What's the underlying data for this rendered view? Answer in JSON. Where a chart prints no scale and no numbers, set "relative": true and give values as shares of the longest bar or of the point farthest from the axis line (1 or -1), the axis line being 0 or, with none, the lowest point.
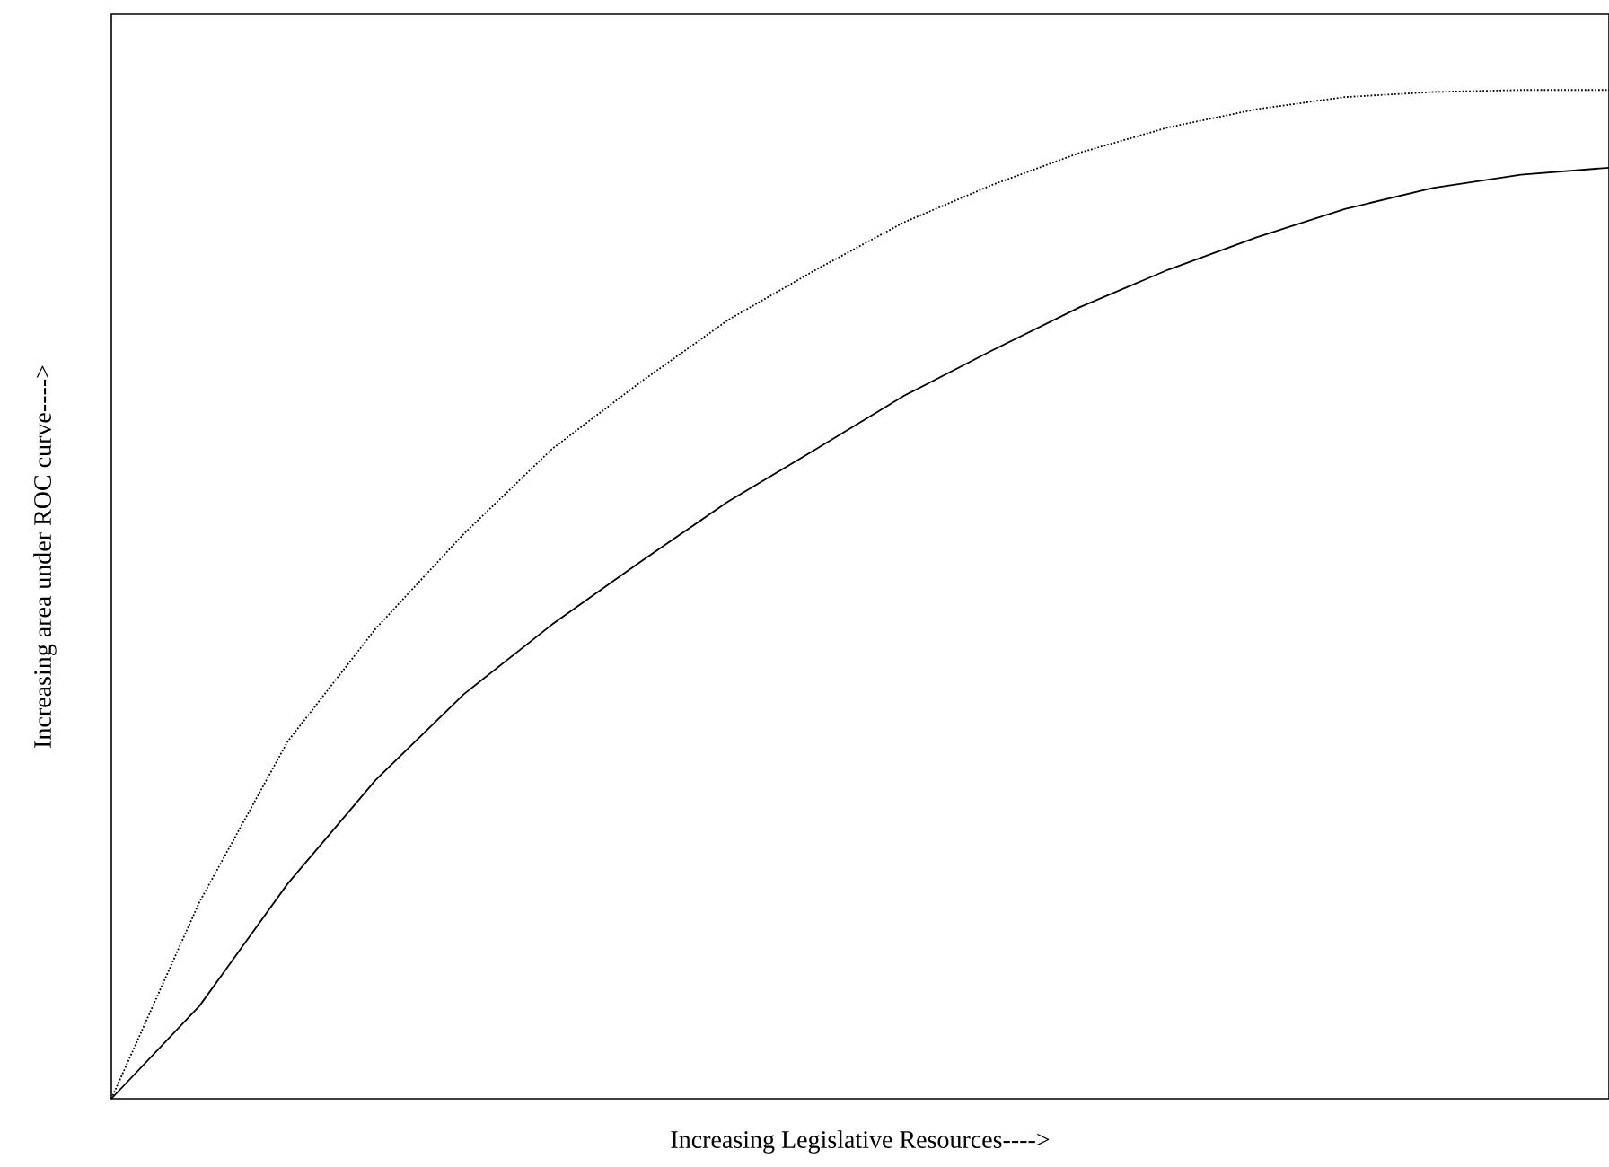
{
  "chart_data": {
    "type": "line",
    "relative": true,
    "xlabel": "Increasing Legislative Resources---->",
    "ylabel": "Increasing area under ROC curve---->",
    "categories": [
      null,
      null,
      null,
      null,
      null,
      null,
      null,
      null,
      null,
      null,
      null,
      null,
      null,
      null,
      null,
      null,
      null,
      null
    ],
    "series": [
      {
        "color": "#000000",
        "line_style": "dotted",
        "values": [
          0,
          0.195,
          0.354,
          0.466,
          0.56,
          0.644,
          0.71,
          0.772,
          0.822,
          0.869,
          0.906,
          0.938,
          0.963,
          0.981,
          0.993,
          0.998,
          1,
          1
        ]
      },
      {
        "color": "#000000",
        "line_style": "solid",
        "values": [
          0,
          0.092,
          0.213,
          0.316,
          0.401,
          0.47,
          0.532,
          0.592,
          0.644,
          0.697,
          0.742,
          0.785,
          0.822,
          0.854,
          0.882,
          0.903,
          0.916,
          0.923
        ]
      }
    ],
    "marker": "none"
  }
}
